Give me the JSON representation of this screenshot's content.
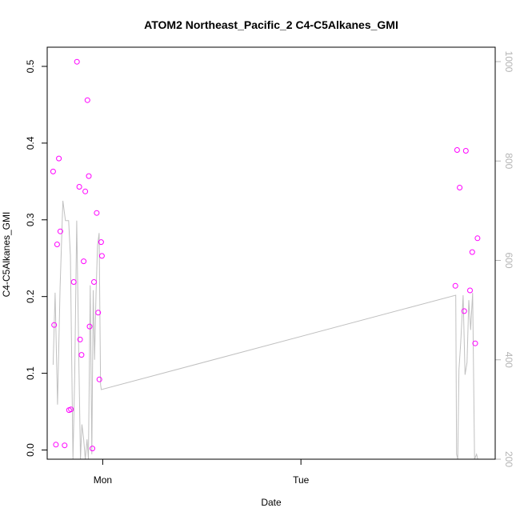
{
  "chart_data": {
    "type": "scatter",
    "title": "ATOM2 Northeast_Pacific_2 C4-C5Alkanes_GMI",
    "xlabel": "Date",
    "ylabel": "C4-C5Alkanes_GMI",
    "x_axis": {
      "unit": "day",
      "range": [
        -0.28,
        1.98
      ],
      "ticks": [
        {
          "value": 0,
          "label": "Mon"
        },
        {
          "value": 1,
          "label": "Tue"
        }
      ]
    },
    "y_axis": {
      "range": [
        -0.012,
        0.525
      ],
      "ticks": [
        0.0,
        0.1,
        0.2,
        0.3,
        0.4,
        0.5
      ],
      "tick_labels": [
        "0.0",
        "0.1",
        "0.2",
        "0.3",
        "0.4",
        "0.5"
      ]
    },
    "y2_axis": {
      "range": [
        1029,
        200
      ],
      "ticks": [
        200,
        400,
        600,
        800,
        1000
      ],
      "tick_labels": [
        "200",
        "400",
        "600",
        "800",
        "1000"
      ],
      "color": "#b4b4b4"
    },
    "series": [
      {
        "kind": "points",
        "color": "#ff00ff",
        "x": [
          -0.25,
          -0.245,
          -0.236,
          -0.23,
          -0.221,
          -0.214,
          -0.192,
          -0.17,
          -0.16,
          -0.146,
          -0.13,
          -0.118,
          -0.114,
          -0.107,
          -0.096,
          -0.088,
          -0.077,
          -0.07,
          -0.066,
          -0.052,
          -0.044,
          -0.03,
          -0.023,
          -0.017,
          -0.008,
          -0.004,
          1.779,
          1.788,
          1.801,
          1.824,
          1.832,
          1.853,
          1.864,
          1.879,
          1.891
        ],
        "y": [
          0.363,
          0.163,
          0.007,
          0.268,
          0.38,
          0.285,
          0.006,
          0.052,
          0.053,
          0.219,
          0.506,
          0.343,
          0.144,
          0.124,
          0.246,
          0.337,
          0.456,
          0.357,
          0.161,
          0.002,
          0.219,
          0.309,
          0.179,
          0.092,
          0.271,
          0.253,
          0.214,
          0.391,
          0.342,
          0.181,
          0.39,
          0.208,
          0.258,
          0.139,
          0.276
        ]
      },
      {
        "kind": "line",
        "axis": "y2",
        "color": "#c0c0c0",
        "x": [
          -0.25,
          -0.24,
          -0.228,
          -0.215,
          -0.201,
          -0.188,
          -0.172,
          -0.163,
          -0.15,
          -0.141,
          -0.131,
          -0.12,
          -0.112,
          -0.105,
          -0.096,
          -0.088,
          -0.079,
          -0.072,
          -0.063,
          -0.055,
          -0.048,
          -0.041,
          -0.034,
          -0.026,
          -0.018,
          -0.011,
          -0.007,
          1.781,
          1.785,
          1.791,
          1.797,
          1.806,
          1.818,
          1.828,
          1.838,
          1.847,
          1.856,
          1.866,
          1.876,
          1.886,
          1.892
        ],
        "y": [
          390,
          535,
          310,
          545,
          720,
          680,
          680,
          610,
          200,
          370,
          680,
          395,
          200,
          270,
          240,
          200,
          240,
          200,
          550,
          210,
          540,
          400,
          530,
          630,
          655,
          350,
          340,
          530,
          210,
          200,
          380,
          435,
          530,
          370,
          395,
          520,
          460,
          535,
          200,
          210,
          200
        ]
      }
    ]
  }
}
